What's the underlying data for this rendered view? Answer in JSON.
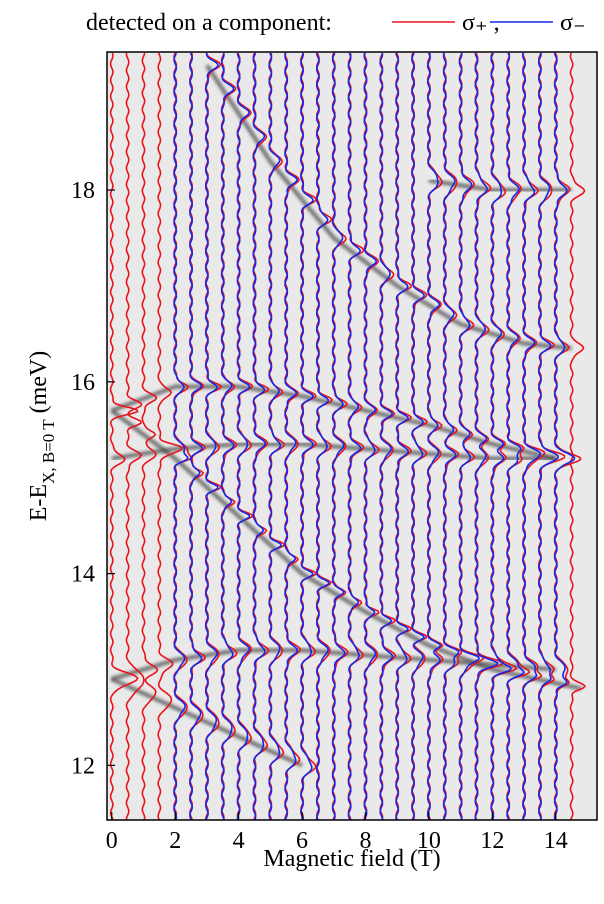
{
  "chart_data": {
    "type": "spectra",
    "legend_title": "detected on a component:",
    "xlabel": "Magnetic field (T)",
    "ylabel": {
      "main": "E-E",
      "sub": "X, B=0 T",
      "unit": "(meV)"
    },
    "xlim": [
      -0.15,
      15.3
    ],
    "xticks": [
      0,
      2,
      4,
      6,
      8,
      10,
      12,
      14
    ],
    "ylim": [
      11.43,
      19.44
    ],
    "yticks": [
      12,
      14,
      16,
      18
    ],
    "series": [
      {
        "name": "σ₊ ,",
        "color": "#e8141c",
        "x": [
          0,
          0.5,
          1,
          1.5,
          2,
          2.5,
          3,
          3.5,
          4,
          4.5,
          5,
          5.5,
          6,
          6.5,
          7,
          7.5,
          8,
          8.5,
          9,
          9.5,
          10,
          10.5,
          11,
          11.5,
          12,
          12.5,
          13,
          13.5,
          14,
          14.5
        ]
      },
      {
        "name": "σ₋",
        "color": "#1428e8",
        "x": [
          2,
          2.5,
          3,
          3.5,
          4,
          4.5,
          5,
          5.5,
          6,
          6.5,
          7,
          7.5,
          8,
          8.5,
          9,
          9.5,
          10,
          10.5,
          11,
          11.5,
          12,
          12.5,
          13,
          13.5,
          14
        ]
      }
    ],
    "ridges": [
      {
        "x": [
          0,
          2,
          4,
          6,
          8,
          10,
          12,
          14.8
        ],
        "values": [
          15.7,
          15.2,
          14.6,
          14.0,
          13.6,
          13.25,
          13.0,
          12.8
        ]
      },
      {
        "x": [
          0,
          2,
          4,
          6,
          8,
          10,
          12,
          14
        ],
        "values": [
          15.7,
          15.95,
          15.95,
          15.85,
          15.7,
          15.55,
          15.35,
          15.2
        ]
      },
      {
        "x": [
          3,
          5,
          7,
          9,
          11,
          13,
          14.5
        ],
        "values": [
          19.3,
          18.3,
          17.5,
          17.0,
          16.6,
          16.4,
          16.35
        ]
      },
      {
        "x": [
          0,
          2,
          4,
          6,
          8,
          10,
          12,
          14
        ],
        "values": [
          15.2,
          15.3,
          15.35,
          15.35,
          15.3,
          15.25,
          15.2,
          15.2
        ]
      },
      {
        "x": [
          0,
          2,
          4,
          6,
          8,
          10,
          12,
          14
        ],
        "values": [
          12.9,
          13.1,
          13.2,
          13.2,
          13.15,
          13.1,
          13.05,
          13.0
        ]
      },
      {
        "x": [
          0,
          2,
          4,
          6
        ],
        "values": [
          12.9,
          12.6,
          12.3,
          12.0
        ]
      },
      {
        "x": [
          10,
          12,
          14.5
        ],
        "values": [
          18.1,
          18.0,
          18.0
        ]
      }
    ]
  }
}
